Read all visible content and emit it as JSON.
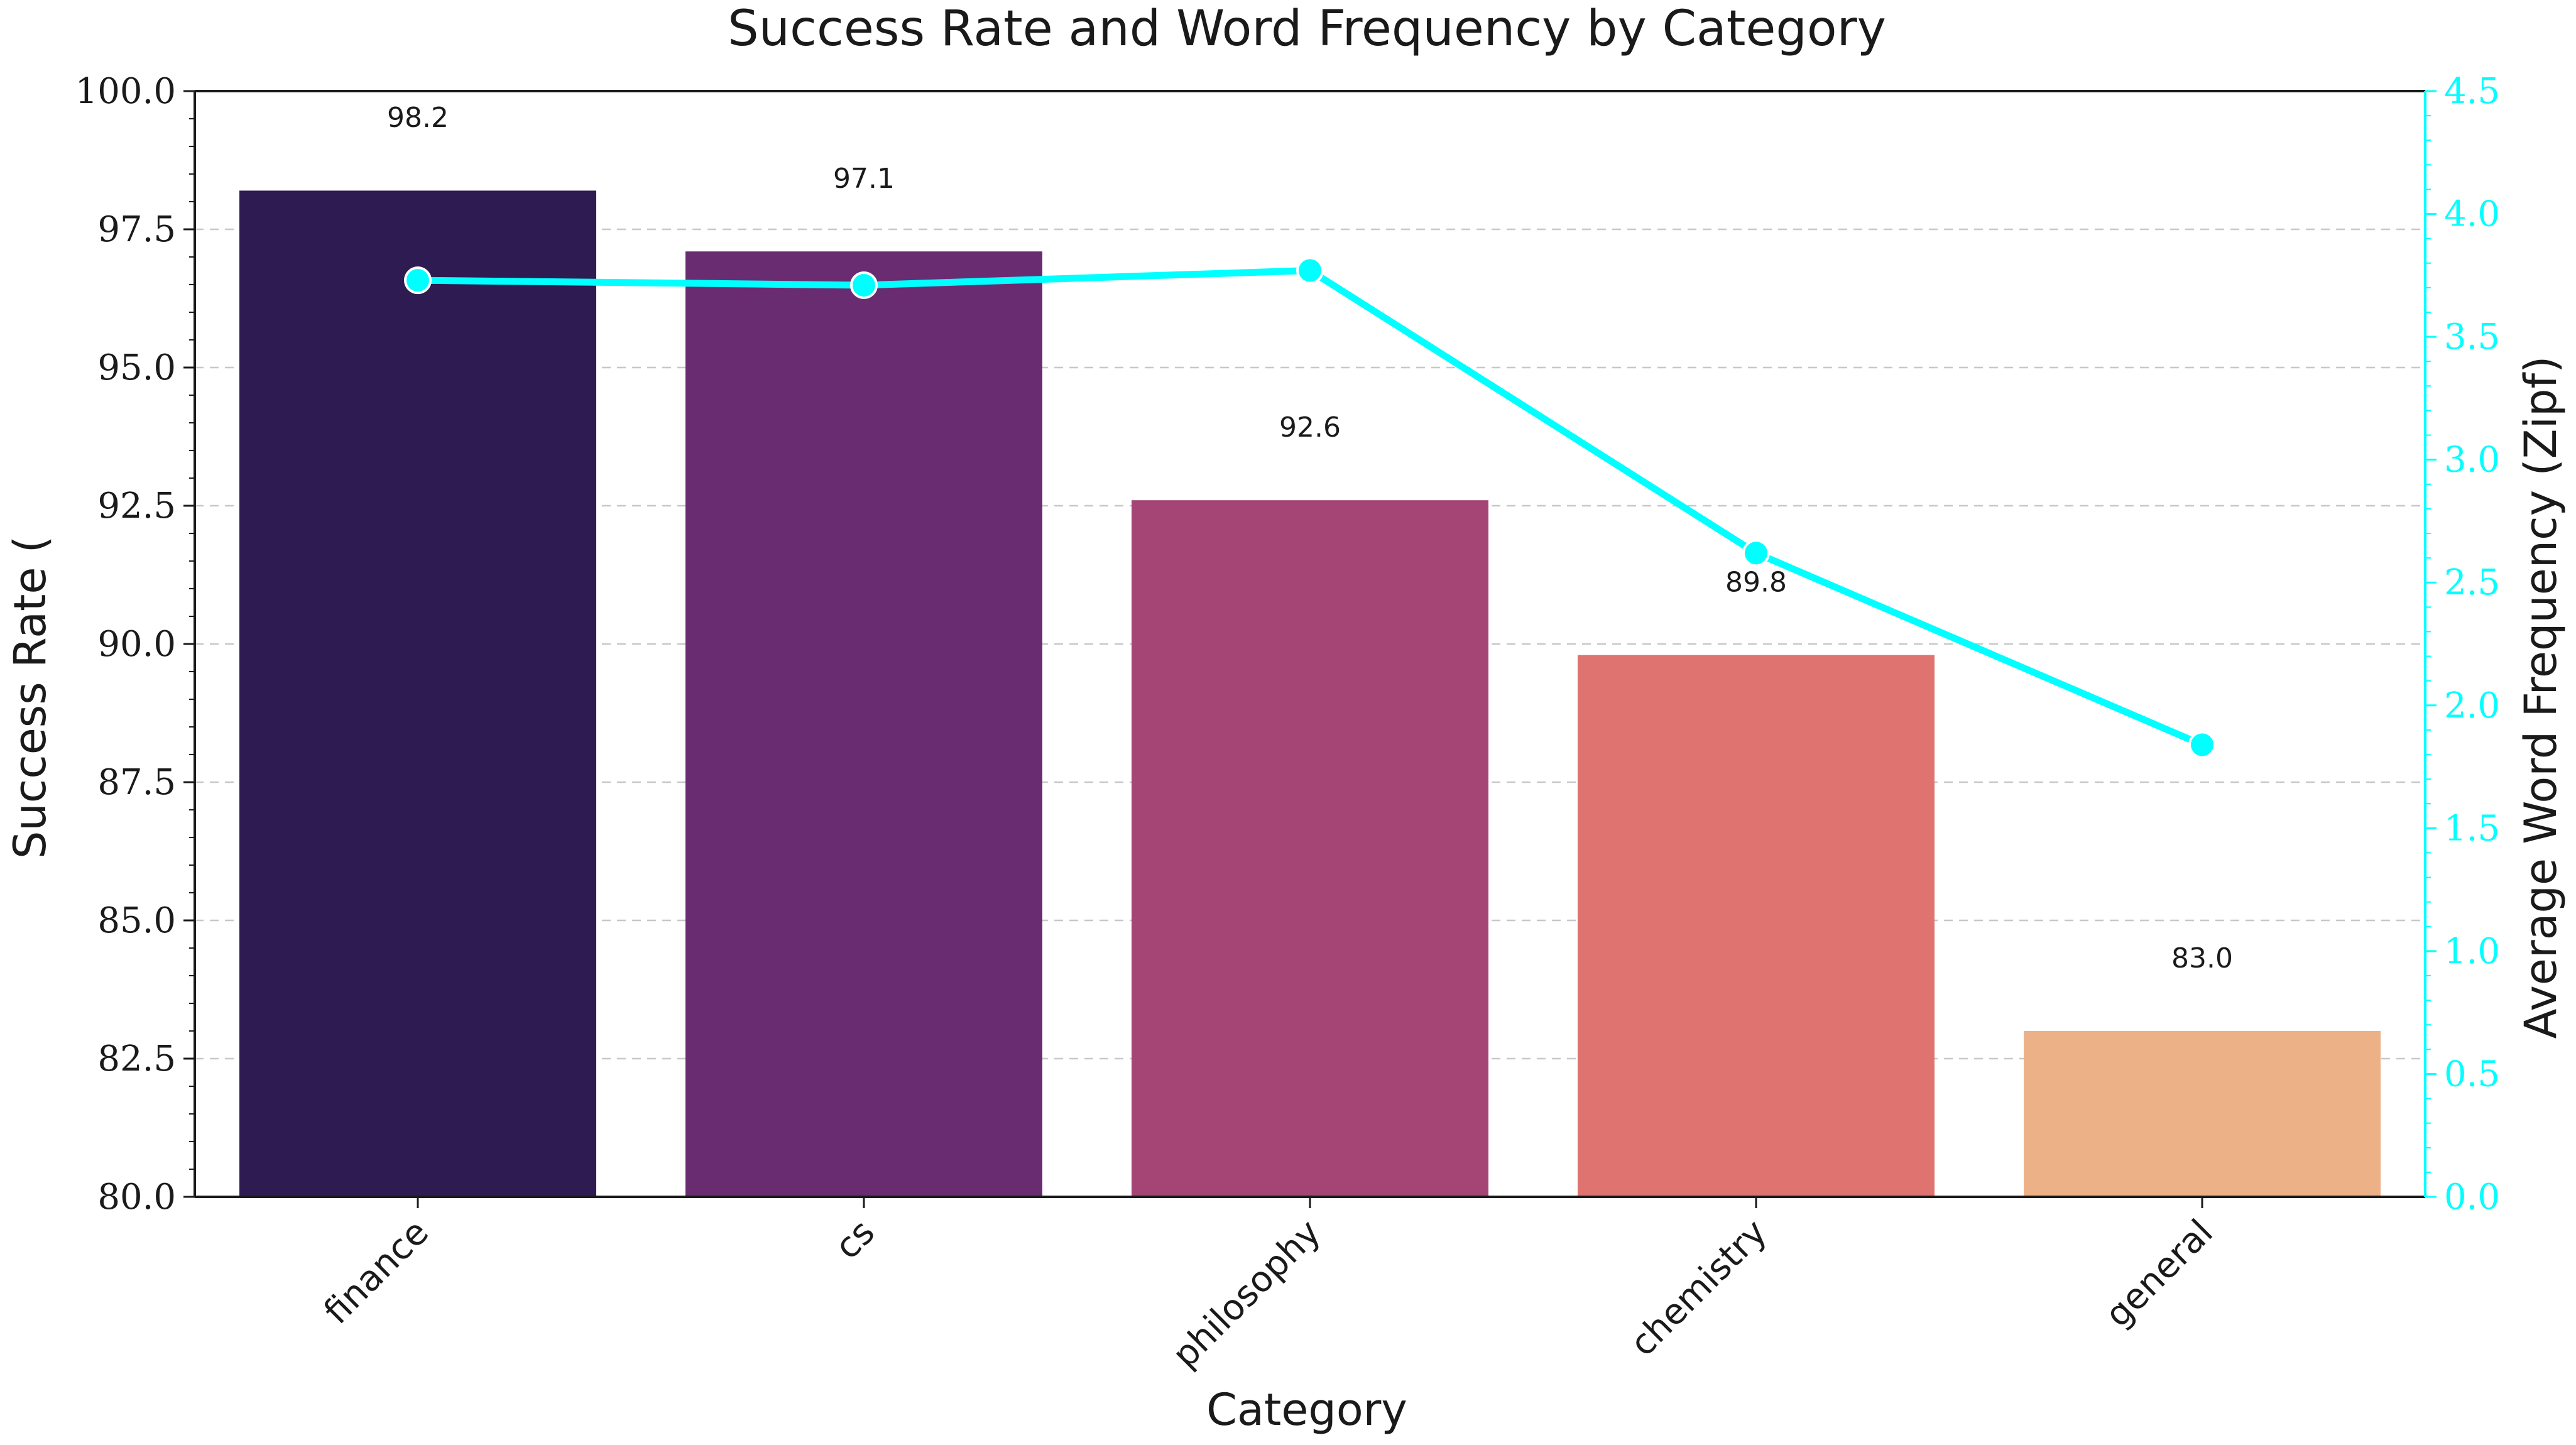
{
  "chart_data": {
    "type": "bar",
    "title": "Success Rate and Word Frequency by Category",
    "xlabel": "Category",
    "ylabel": "Success Rate (",
    "y2label": "Average Word Frequency (Zipf)",
    "categories": [
      "finance",
      "cs",
      "philosophy",
      "chemistry",
      "general"
    ],
    "ylim": [
      80.0,
      100.0
    ],
    "y2lim": [
      0.0,
      4.5
    ],
    "yticks": [
      "80.0",
      "82.5",
      "85.0",
      "87.5",
      "90.0",
      "92.5",
      "95.0",
      "97.5",
      "100.0"
    ],
    "y2ticks": [
      "0.0",
      "0.5",
      "1.0",
      "1.5",
      "2.0",
      "2.5",
      "3.0",
      "3.5",
      "4.0",
      "4.5"
    ],
    "grid": "horizontal dashed",
    "series": [
      {
        "type": "bar",
        "axis": "left",
        "values": [
          98.2,
          97.1,
          92.6,
          89.8,
          83.0
        ],
        "labels": [
          "98.2",
          "97.1",
          "92.6",
          "89.8",
          "83.0"
        ],
        "colors": [
          "#2e1b52",
          "#692c71",
          "#a44575",
          "#de7370",
          "#edb188"
        ]
      },
      {
        "type": "line",
        "axis": "right",
        "values": [
          3.73,
          3.71,
          3.77,
          2.62,
          1.84
        ],
        "color": "#00ffff"
      }
    ]
  }
}
